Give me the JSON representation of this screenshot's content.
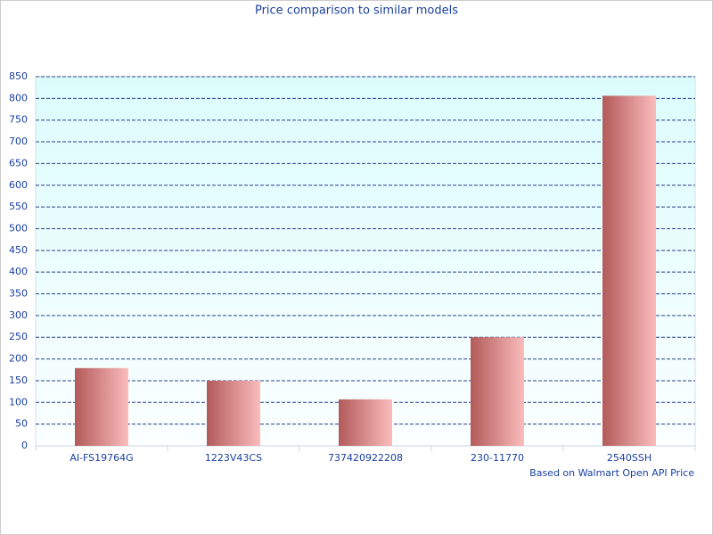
{
  "chart_data": {
    "type": "bar",
    "title": "Price comparison to similar models",
    "annotation": "Based on Walmart Open API Price",
    "categories": [
      "AI-FS19764G",
      "1223V43CS",
      "737420922208",
      "230-11770",
      "2540SSH"
    ],
    "values": [
      179,
      150,
      107,
      250,
      806
    ],
    "gradient": [
      "#b35a5a",
      "#fbbcbc"
    ],
    "ylim": [
      0,
      850
    ],
    "yticks": [
      0,
      50,
      100,
      150,
      200,
      250,
      300,
      350,
      400,
      450,
      500,
      550,
      600,
      650,
      700,
      750,
      800,
      850
    ],
    "grid": true
  }
}
